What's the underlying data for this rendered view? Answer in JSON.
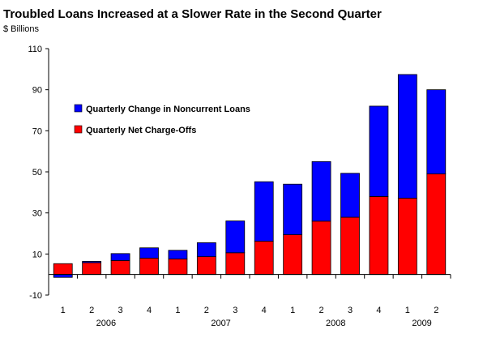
{
  "title": "Troubled Loans Increased at a Slower Rate in the Second Quarter",
  "subtitle": "$ Billions",
  "chart_data": {
    "type": "bar",
    "stacked": true,
    "title": "Troubled Loans Increased at a Slower Rate in the Second Quarter",
    "ylabel": "$ Billions",
    "ylim": [
      -10,
      110
    ],
    "yticks": [
      -10,
      10,
      30,
      50,
      70,
      90,
      110
    ],
    "categories": [
      "1",
      "2",
      "3",
      "4",
      "1",
      "2",
      "3",
      "4",
      "1",
      "2",
      "3",
      "4",
      "1",
      "2"
    ],
    "year_groups": [
      {
        "label": "2006",
        "start": 0,
        "end": 3
      },
      {
        "label": "2007",
        "start": 4,
        "end": 7
      },
      {
        "label": "2008",
        "start": 8,
        "end": 11
      },
      {
        "label": "2009",
        "start": 12,
        "end": 13
      }
    ],
    "series": [
      {
        "name": "Quarterly Net Charge-Offs",
        "color": "#ff0000",
        "values": [
          5.3,
          5.8,
          6.8,
          8.0,
          7.6,
          8.7,
          10.6,
          16.2,
          19.4,
          26.0,
          27.9,
          38.0,
          37.2,
          49.0
        ]
      },
      {
        "name": "Quarterly Change in Noncurrent Loans",
        "color": "#0000ff",
        "values": [
          -1.4,
          0.6,
          3.4,
          5.0,
          4.2,
          6.8,
          15.5,
          29.0,
          24.6,
          29.0,
          21.4,
          44.0,
          60.2,
          41.0
        ]
      }
    ],
    "legend_position": "top-left",
    "grid": false
  }
}
